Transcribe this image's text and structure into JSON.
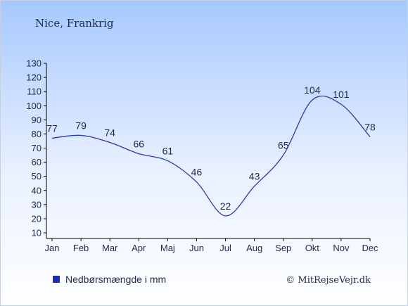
{
  "chart_data": {
    "type": "line",
    "title": "Nice, Frankrig",
    "categories": [
      "Jan",
      "Feb",
      "Mar",
      "Apr",
      "Maj",
      "Jun",
      "Jul",
      "Aug",
      "Sep",
      "Okt",
      "Nov",
      "Dec"
    ],
    "series": [
      {
        "name": "Nedbørsmængde i mm",
        "values": [
          77,
          79,
          74,
          66,
          61,
          46,
          22,
          43,
          65,
          104,
          101,
          78
        ]
      }
    ],
    "data_labels": [
      "77",
      "79",
      "74",
      "66",
      "61",
      "46",
      "22",
      "43",
      "65",
      "104",
      "101",
      "78"
    ],
    "y_ticks": [
      "10",
      "20",
      "30",
      "40",
      "50",
      "60",
      "70",
      "80",
      "90",
      "100",
      "110",
      "120",
      "130"
    ],
    "ylim": [
      10,
      130
    ],
    "grid": false,
    "legend_position": "bottom-left"
  },
  "colors": {
    "background_top": "#a6c8ff",
    "background_bottom": "#ffffff",
    "line": "#2a3aa8",
    "legend_marker": "#1b2db5",
    "text": "#1e2a4a"
  },
  "copyright": "© MitRejseVejr.dk"
}
